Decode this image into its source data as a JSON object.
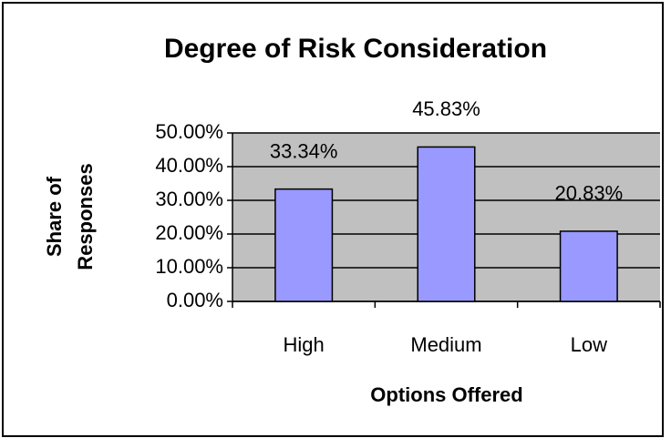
{
  "chart_data": {
    "type": "bar",
    "title": "Degree of Risk Consideration",
    "x_label": "Options Offered",
    "y_label": [
      "Share of",
      "Responses"
    ],
    "categories": [
      "High",
      "Medium",
      "Low"
    ],
    "values": [
      33.34,
      45.83,
      20.83
    ],
    "value_labels": [
      "33.34%",
      "45.83%",
      "20.83%"
    ],
    "color": "#9999ff",
    "plot_background": "#c0c0c0",
    "ylim": [
      0,
      50
    ],
    "yticks": [
      {
        "value": 0,
        "label": "0.00%"
      },
      {
        "value": 10,
        "label": "10.00%"
      },
      {
        "value": 20,
        "label": "20.00%"
      },
      {
        "value": 30,
        "label": "30.00%"
      },
      {
        "value": 40,
        "label": "40.00%"
      },
      {
        "value": 50,
        "label": "50.00%"
      }
    ],
    "grid": true
  }
}
